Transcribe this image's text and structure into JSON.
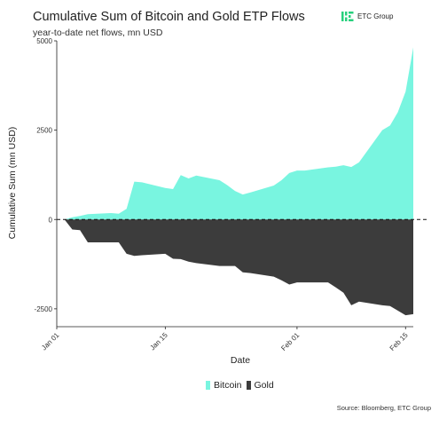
{
  "header": {
    "title": "Cumulative Sum of Bitcoin and Gold ETP Flows",
    "subtitle": "year-to-date net flows, mn USD",
    "logo_text": "ETC Group"
  },
  "footer": {
    "source": "Source: Bloomberg, ETC Group"
  },
  "colors": {
    "bitcoin": "#79f5e0",
    "gold": "#3c3c3c",
    "logo_green": "#26d07c"
  },
  "chart_data": {
    "type": "area",
    "title": "Cumulative Sum of Bitcoin and Gold ETP Flows",
    "subtitle": "year-to-date net flows, mn USD",
    "xlabel": "Date",
    "ylabel": "Cumulative Sum (mn USD)",
    "xlim": [
      "2024-01-01",
      "2024-02-16"
    ],
    "ylim": [
      -3000,
      5000
    ],
    "x_ticks": [
      "2024-01-01",
      "2024-01-15",
      "2024-02-01",
      "2024-02-15"
    ],
    "x_tick_labels": [
      "Jan 01",
      "Jan 15",
      "Feb 01",
      "Feb 15"
    ],
    "y_ticks": [
      -2500,
      0,
      2500,
      5000
    ],
    "y_tick_labels": [
      "-2500",
      "0",
      "2500",
      "5000"
    ],
    "reference_line": 0,
    "grid": false,
    "legend_position": "bottom",
    "series": [
      {
        "name": "Bitcoin",
        "color": "#79f5e0",
        "points": [
          [
            "2024-01-02",
            0
          ],
          [
            "2024-01-03",
            60
          ],
          [
            "2024-01-04",
            100
          ],
          [
            "2024-01-05",
            150
          ],
          [
            "2024-01-08",
            180
          ],
          [
            "2024-01-09",
            160
          ],
          [
            "2024-01-10",
            300
          ],
          [
            "2024-01-11",
            1060
          ],
          [
            "2024-01-12",
            1040
          ],
          [
            "2024-01-15",
            880
          ],
          [
            "2024-01-16",
            850
          ],
          [
            "2024-01-17",
            1240
          ],
          [
            "2024-01-18",
            1150
          ],
          [
            "2024-01-19",
            1230
          ],
          [
            "2024-01-22",
            1100
          ],
          [
            "2024-01-23",
            960
          ],
          [
            "2024-01-24",
            800
          ],
          [
            "2024-01-25",
            700
          ],
          [
            "2024-01-26",
            760
          ],
          [
            "2024-01-29",
            950
          ],
          [
            "2024-01-30",
            1100
          ],
          [
            "2024-01-31",
            1300
          ],
          [
            "2024-02-01",
            1370
          ],
          [
            "2024-02-02",
            1370
          ],
          [
            "2024-02-05",
            1460
          ],
          [
            "2024-02-06",
            1480
          ],
          [
            "2024-02-07",
            1520
          ],
          [
            "2024-02-08",
            1470
          ],
          [
            "2024-02-09",
            1600
          ],
          [
            "2024-02-12",
            2500
          ],
          [
            "2024-02-13",
            2630
          ],
          [
            "2024-02-14",
            3000
          ],
          [
            "2024-02-15",
            3580
          ],
          [
            "2024-02-16",
            4820
          ]
        ]
      },
      {
        "name": "Gold",
        "color": "#3c3c3c",
        "points": [
          [
            "2024-01-02",
            0
          ],
          [
            "2024-01-03",
            -280
          ],
          [
            "2024-01-04",
            -300
          ],
          [
            "2024-01-05",
            -640
          ],
          [
            "2024-01-08",
            -640
          ],
          [
            "2024-01-09",
            -640
          ],
          [
            "2024-01-10",
            -960
          ],
          [
            "2024-01-11",
            -1020
          ],
          [
            "2024-01-12",
            -1000
          ],
          [
            "2024-01-15",
            -960
          ],
          [
            "2024-01-16",
            -1100
          ],
          [
            "2024-01-17",
            -1110
          ],
          [
            "2024-01-18",
            -1180
          ],
          [
            "2024-01-19",
            -1220
          ],
          [
            "2024-01-22",
            -1300
          ],
          [
            "2024-01-23",
            -1300
          ],
          [
            "2024-01-24",
            -1300
          ],
          [
            "2024-01-25",
            -1480
          ],
          [
            "2024-01-26",
            -1500
          ],
          [
            "2024-01-29",
            -1600
          ],
          [
            "2024-01-30",
            -1700
          ],
          [
            "2024-01-31",
            -1820
          ],
          [
            "2024-02-01",
            -1760
          ],
          [
            "2024-02-02",
            -1760
          ],
          [
            "2024-02-05",
            -1760
          ],
          [
            "2024-02-06",
            -1900
          ],
          [
            "2024-02-07",
            -2050
          ],
          [
            "2024-02-08",
            -2400
          ],
          [
            "2024-02-09",
            -2300
          ],
          [
            "2024-02-12",
            -2400
          ],
          [
            "2024-02-13",
            -2420
          ],
          [
            "2024-02-14",
            -2550
          ],
          [
            "2024-02-15",
            -2680
          ],
          [
            "2024-02-16",
            -2650
          ]
        ]
      }
    ]
  }
}
